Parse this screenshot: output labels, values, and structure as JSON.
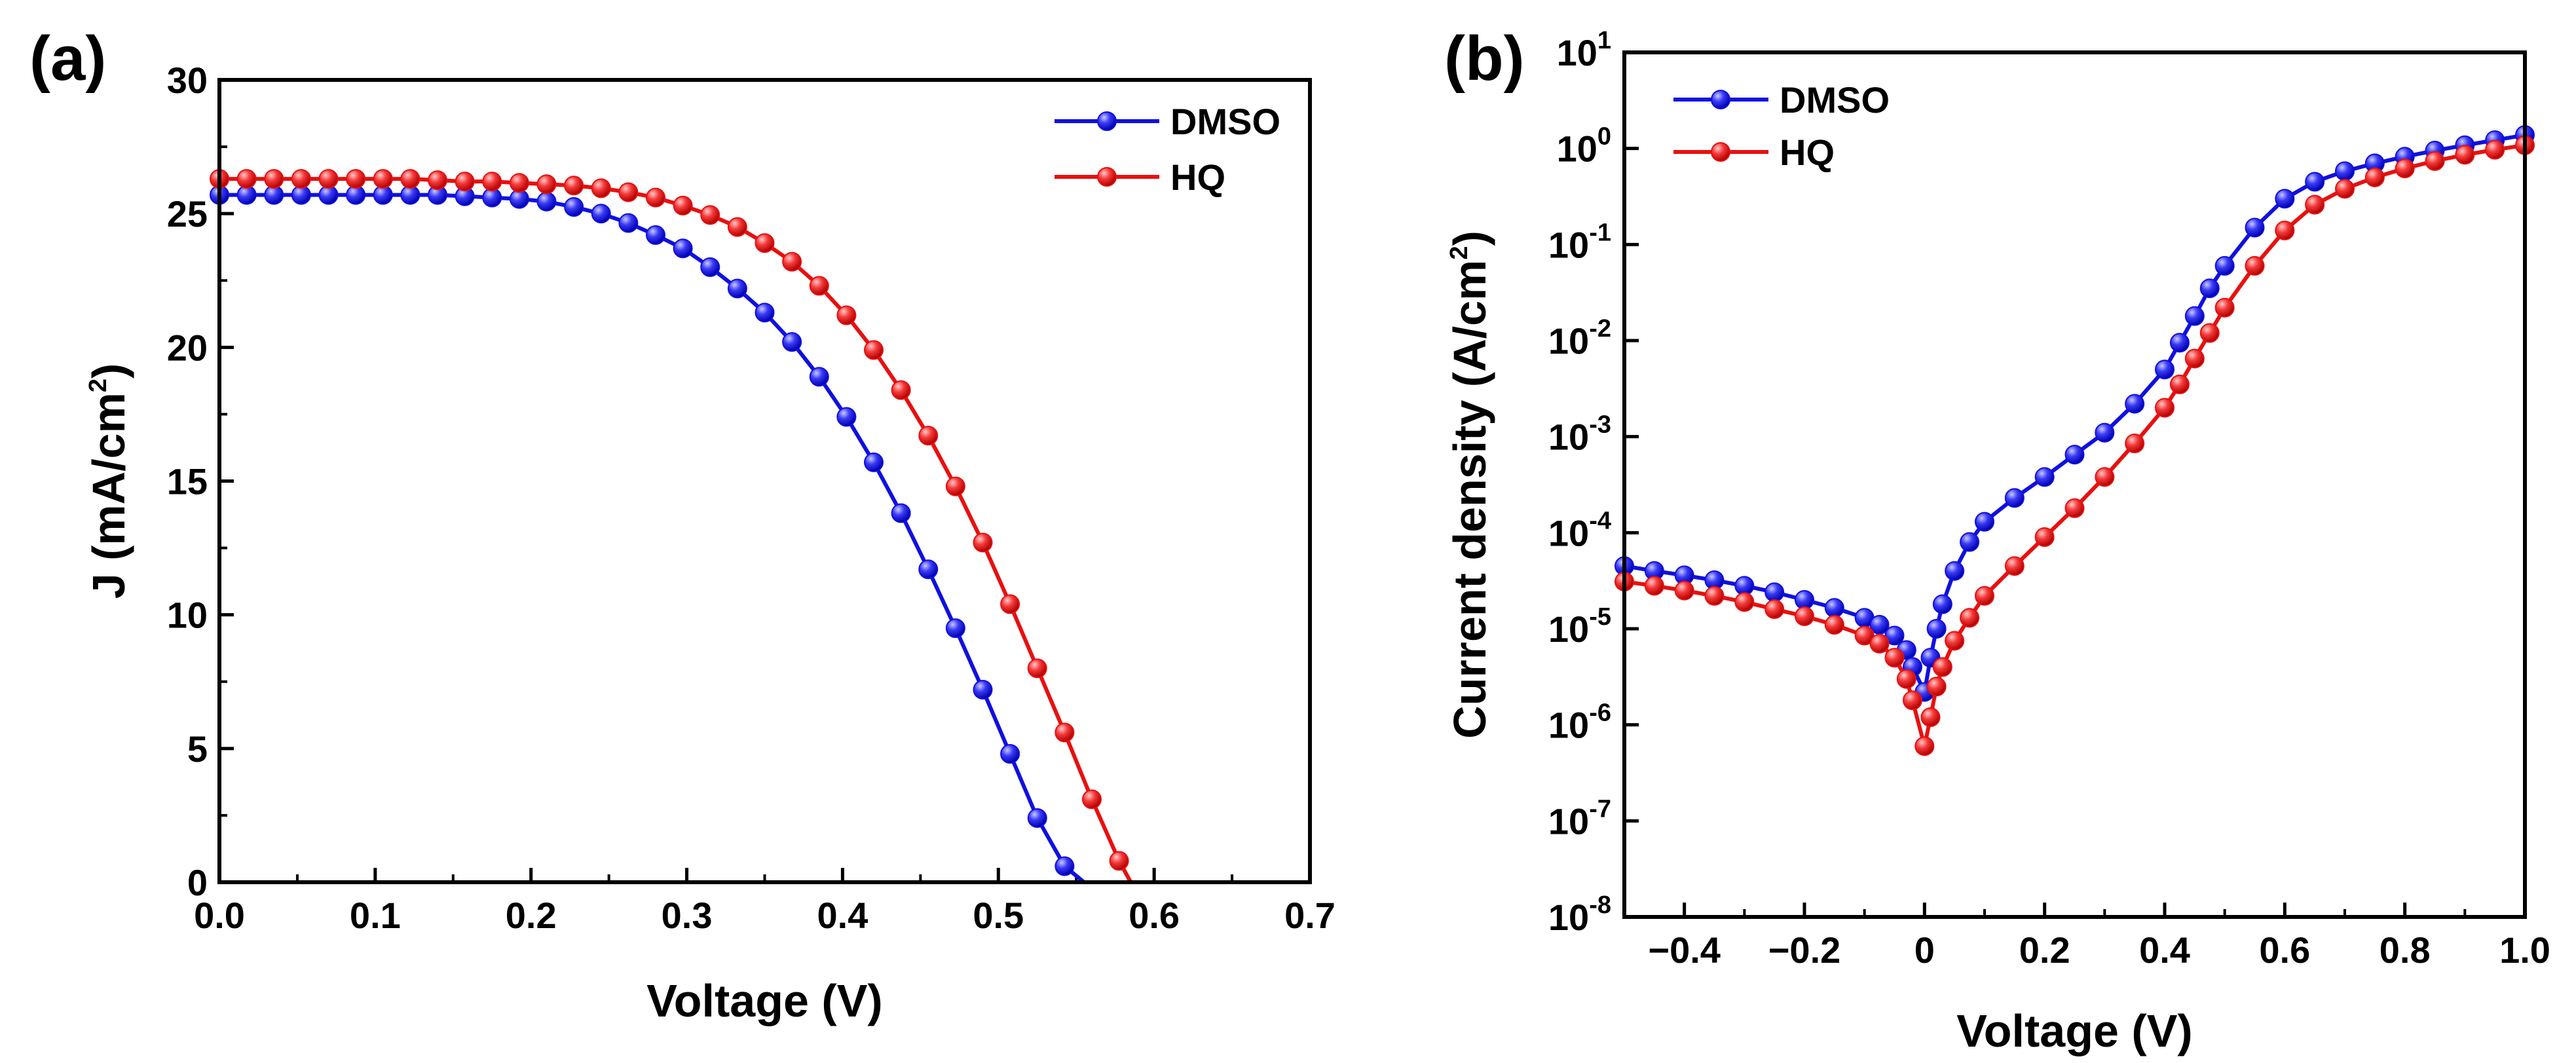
{
  "chart_data": [
    {
      "type": "line",
      "panel_label": "(a)",
      "title": "",
      "xlabel": "Voltage (V)",
      "ylabel_main": "J (mA/cm",
      "ylabel_sup": "2",
      "ylabel_tail": ")",
      "xlim": [
        0,
        0.7
      ],
      "ylim": [
        0,
        30
      ],
      "x_ticks": [
        0.0,
        0.1,
        0.2,
        0.3,
        0.4,
        0.5,
        0.6,
        0.7
      ],
      "x_tick_labels": [
        "0.0",
        "0.1",
        "0.2",
        "0.3",
        "0.4",
        "0.5",
        "0.6",
        "0.7"
      ],
      "y_ticks": [
        0,
        5,
        10,
        15,
        20,
        25,
        30
      ],
      "y_tick_labels": [
        "0",
        "5",
        "10",
        "15",
        "20",
        "25",
        "30"
      ],
      "grid": false,
      "legend_position": "top-right",
      "series": [
        {
          "name": "DMSO",
          "color": "#1010e0",
          "x": [
            0.0,
            0.0175,
            0.035,
            0.0525,
            0.07,
            0.0875,
            0.105,
            0.1225,
            0.14,
            0.1575,
            0.175,
            0.1925,
            0.21,
            0.2275,
            0.245,
            0.2625,
            0.28,
            0.2975,
            0.315,
            0.3325,
            0.35,
            0.3675,
            0.385,
            0.4025,
            0.42,
            0.4375,
            0.455,
            0.4725,
            0.49,
            0.5075,
            0.525,
            0.5425,
            0.555
          ],
          "y": [
            25.7,
            25.7,
            25.7,
            25.7,
            25.7,
            25.7,
            25.7,
            25.7,
            25.7,
            25.65,
            25.6,
            25.55,
            25.45,
            25.25,
            25.0,
            24.65,
            24.2,
            23.7,
            23.0,
            22.2,
            21.3,
            20.2,
            18.9,
            17.4,
            15.7,
            13.8,
            11.7,
            9.5,
            7.2,
            4.8,
            2.4,
            0.6,
            0.0
          ]
        },
        {
          "name": "HQ",
          "color": "#e81010",
          "x": [
            0.0,
            0.0175,
            0.035,
            0.0525,
            0.07,
            0.0875,
            0.105,
            0.1225,
            0.14,
            0.1575,
            0.175,
            0.1925,
            0.21,
            0.2275,
            0.245,
            0.2625,
            0.28,
            0.2975,
            0.315,
            0.3325,
            0.35,
            0.3675,
            0.385,
            0.4025,
            0.42,
            0.4375,
            0.455,
            0.4725,
            0.49,
            0.5075,
            0.525,
            0.5425,
            0.56,
            0.5775,
            0.585
          ],
          "y": [
            26.3,
            26.3,
            26.3,
            26.3,
            26.3,
            26.3,
            26.3,
            26.3,
            26.25,
            26.2,
            26.2,
            26.15,
            26.1,
            26.05,
            25.95,
            25.8,
            25.6,
            25.3,
            24.95,
            24.5,
            23.9,
            23.2,
            22.3,
            21.2,
            19.9,
            18.4,
            16.7,
            14.8,
            12.7,
            10.4,
            8.0,
            5.6,
            3.1,
            0.8,
            0.0
          ]
        }
      ]
    },
    {
      "type": "line",
      "panel_label": "(b)",
      "title": "",
      "xlabel": "Voltage (V)",
      "ylabel_main": "Current density (A/cm",
      "ylabel_sup": "2",
      "ylabel_tail": ")",
      "y_scale": "log",
      "xlim": [
        -0.5,
        1.0
      ],
      "ylim_log10": [
        -8,
        1
      ],
      "x_ticks": [
        -0.4,
        -0.2,
        0,
        0.2,
        0.4,
        0.6,
        0.8,
        1.0
      ],
      "x_tick_labels": [
        "−0.4",
        "−0.2",
        "0",
        "0.2",
        "0.4",
        "0.6",
        "0.8",
        "1.0"
      ],
      "y_ticks_exp": [
        1,
        0,
        -1,
        -2,
        -3,
        -4,
        -5,
        -6,
        -7,
        -8
      ],
      "y_tick_base": "10",
      "y_tick_exps": [
        "1",
        "0",
        "-1",
        "-2",
        "-3",
        "-4",
        "-5",
        "-6",
        "-7",
        "-8"
      ],
      "grid": false,
      "legend_position": "top-left",
      "series": [
        {
          "name": "DMSO",
          "color": "#1010e0",
          "x": [
            -0.5,
            -0.45,
            -0.4,
            -0.35,
            -0.3,
            -0.25,
            -0.2,
            -0.15,
            -0.1,
            -0.075,
            -0.05,
            -0.03,
            -0.02,
            0.0,
            0.01,
            0.02,
            0.03,
            0.05,
            0.075,
            0.1,
            0.15,
            0.2,
            0.25,
            0.3,
            0.35,
            0.4,
            0.425,
            0.45,
            0.475,
            0.5,
            0.55,
            0.6,
            0.65,
            0.7,
            0.75,
            0.8,
            0.85,
            0.9,
            0.95,
            1.0
          ],
          "y": [
            4.5e-05,
            4e-05,
            3.6e-05,
            3.2e-05,
            2.8e-05,
            2.4e-05,
            2e-05,
            1.65e-05,
            1.3e-05,
            1.1e-05,
            8.5e-06,
            6e-06,
            4e-06,
            2.2e-06,
            5e-06,
            1e-05,
            1.8e-05,
            4e-05,
            8e-05,
            0.00013,
            0.00023,
            0.00038,
            0.00065,
            0.0011,
            0.0022,
            0.005,
            0.0095,
            0.018,
            0.035,
            0.06,
            0.15,
            0.3,
            0.45,
            0.58,
            0.7,
            0.82,
            0.95,
            1.08,
            1.22,
            1.38
          ]
        },
        {
          "name": "HQ",
          "color": "#e81010",
          "x": [
            -0.5,
            -0.45,
            -0.4,
            -0.35,
            -0.3,
            -0.25,
            -0.2,
            -0.15,
            -0.1,
            -0.075,
            -0.05,
            -0.03,
            -0.02,
            0.0,
            0.01,
            0.02,
            0.03,
            0.05,
            0.075,
            0.1,
            0.15,
            0.2,
            0.25,
            0.3,
            0.35,
            0.4,
            0.425,
            0.45,
            0.475,
            0.5,
            0.55,
            0.6,
            0.65,
            0.7,
            0.75,
            0.8,
            0.85,
            0.9,
            0.95,
            1.0
          ],
          "y": [
            3.1e-05,
            2.8e-05,
            2.5e-05,
            2.2e-05,
            1.9e-05,
            1.6e-05,
            1.35e-05,
            1.1e-05,
            8.5e-06,
            7e-06,
            5e-06,
            3e-06,
            1.8e-06,
            6e-07,
            1.2e-06,
            2.5e-06,
            4e-06,
            7.5e-06,
            1.3e-05,
            2.2e-05,
            4.5e-05,
            9e-05,
            0.00018,
            0.00038,
            0.00085,
            0.002,
            0.0035,
            0.0065,
            0.012,
            0.022,
            0.06,
            0.14,
            0.26,
            0.38,
            0.5,
            0.62,
            0.74,
            0.86,
            0.97,
            1.08
          ]
        }
      ]
    }
  ]
}
